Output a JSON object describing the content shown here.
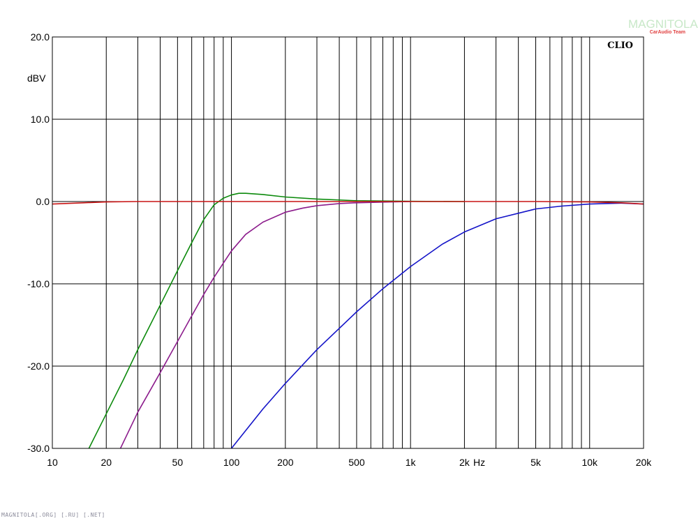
{
  "chart_data": {
    "type": "line",
    "xscale": "log",
    "xlim": [
      10,
      20000
    ],
    "ylim": [
      -30,
      20
    ],
    "ylabel": "dBV",
    "xunit": "Hz",
    "x_ticks": [
      10,
      20,
      50,
      100,
      200,
      500,
      1000,
      2000,
      5000,
      10000,
      20000
    ],
    "x_tick_labels": [
      "10",
      "20",
      "50",
      "100",
      "200",
      "500",
      "1k",
      "2k",
      "5k",
      "10k",
      "20k"
    ],
    "y_ticks": [
      20,
      10,
      0,
      -10,
      -20,
      -30
    ],
    "y_tick_labels": [
      "20.0",
      "10.0",
      "0.0",
      "-10.0",
      "-20.0",
      "-30.0"
    ],
    "grid": true,
    "series": [
      {
        "color": "#0c8a0c",
        "x": [
          16,
          20,
          25,
          30,
          40,
          50,
          60,
          70,
          80,
          90,
          100,
          110,
          120,
          130,
          150,
          200,
          300,
          500,
          1000,
          2000
        ],
        "y": [
          -30.0,
          -25.8,
          -21.6,
          -18.0,
          -12.6,
          -8.4,
          -5.0,
          -2.2,
          -0.4,
          0.4,
          0.8,
          1.0,
          1.0,
          0.95,
          0.85,
          0.55,
          0.3,
          0.1,
          0.03,
          0.0
        ]
      },
      {
        "color": "#8c1c8c",
        "x": [
          24,
          30,
          40,
          50,
          60,
          70,
          80,
          90,
          100,
          120,
          150,
          200,
          250,
          300,
          400,
          500,
          700,
          1000
        ],
        "y": [
          -30.0,
          -25.6,
          -20.8,
          -17.0,
          -13.9,
          -11.3,
          -9.2,
          -7.5,
          -6.0,
          -4.0,
          -2.5,
          -1.3,
          -0.8,
          -0.5,
          -0.25,
          -0.15,
          -0.07,
          0.0
        ]
      },
      {
        "color": "#1414c8",
        "x": [
          100,
          150,
          200,
          300,
          500,
          700,
          1000,
          1500,
          2000,
          3000,
          5000,
          7000,
          10000,
          15000,
          20000
        ],
        "y": [
          -30.0,
          -25.2,
          -22.1,
          -18.0,
          -13.4,
          -10.6,
          -7.9,
          -5.2,
          -3.7,
          -2.1,
          -0.9,
          -0.55,
          -0.3,
          -0.2,
          -0.3
        ]
      },
      {
        "color": "#c81414",
        "x": [
          10,
          15,
          20,
          30,
          50,
          100,
          200,
          1000,
          5000,
          10000,
          15000,
          20000
        ],
        "y": [
          -0.3,
          -0.15,
          -0.05,
          0.0,
          0.0,
          0.0,
          0.0,
          0.0,
          0.0,
          -0.05,
          -0.15,
          -0.3
        ]
      }
    ],
    "annotation": "CLIO"
  },
  "watermark": {
    "main": "MAGNITOLA",
    "sub": "CarAudio Team"
  },
  "footer": "MAGNITOLA[.ORG] [.RU] [.NET]"
}
